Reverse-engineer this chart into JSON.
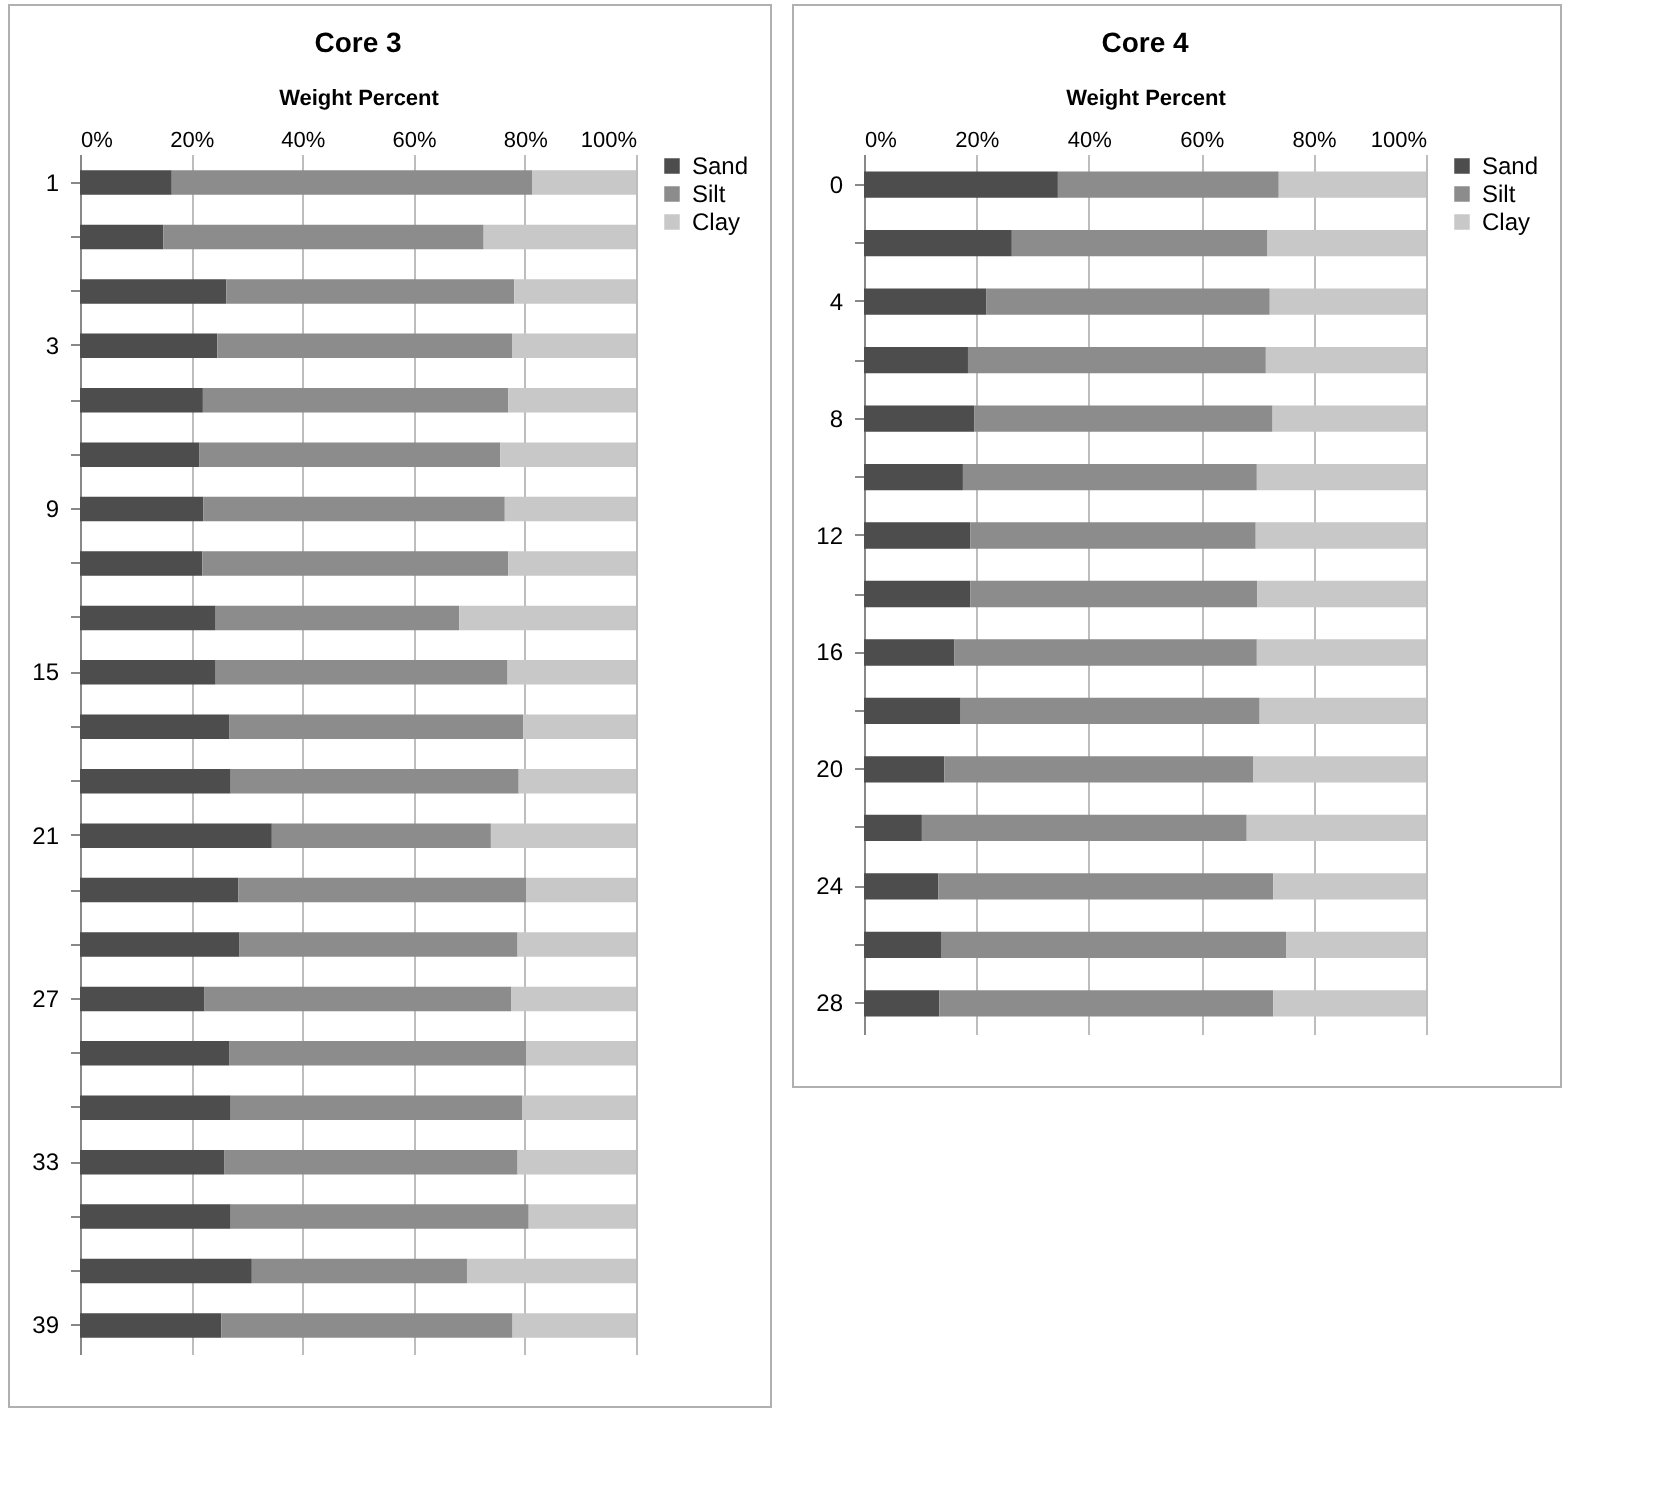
{
  "chart_data": [
    {
      "type": "bar",
      "title": "Core 3",
      "xlabel": "Weight Percent",
      "orientation": "horizontal",
      "stacked": true,
      "grid": "x",
      "legend": "right",
      "categories": [
        "1",
        null,
        null,
        "3",
        null,
        null,
        "9",
        null,
        null,
        "15",
        null,
        null,
        "21",
        null,
        null,
        "27",
        null,
        null,
        "33",
        null,
        null,
        "39"
      ],
      "xlim": [
        0,
        100
      ],
      "xticks": [
        {
          "value": 0,
          "label": "0%"
        },
        {
          "value": 20,
          "label": "20%"
        },
        {
          "value": 40,
          "label": "40%"
        },
        {
          "value": 60,
          "label": "60%"
        },
        {
          "value": 80,
          "label": "80%"
        },
        {
          "value": 100,
          "label": "100%"
        }
      ],
      "series": [
        {
          "name": "Sand",
          "color": "#4d4d4d",
          "values": [
            16.5,
            15.0,
            26.3,
            24.7,
            22.1,
            21.5,
            22.2,
            22.0,
            24.4,
            24.4,
            26.9,
            27.1,
            34.5,
            28.5,
            28.7,
            22.4,
            26.9,
            27.1,
            26.0,
            27.1,
            30.9,
            25.4
          ]
        },
        {
          "name": "Silt",
          "color": "#8c8c8c",
          "values": [
            64.8,
            57.6,
            51.8,
            53.0,
            54.9,
            54.1,
            54.2,
            55.0,
            43.8,
            52.5,
            52.8,
            51.8,
            39.4,
            51.8,
            50.0,
            55.2,
            53.4,
            52.4,
            52.7,
            53.6,
            38.7,
            52.4
          ]
        },
        {
          "name": "Clay",
          "color": "#c8c8c8",
          "values": [
            18.7,
            27.4,
            21.9,
            22.3,
            23.0,
            24.4,
            23.6,
            23.0,
            31.8,
            23.1,
            20.3,
            21.1,
            26.1,
            19.7,
            21.3,
            22.4,
            19.7,
            20.5,
            21.3,
            19.3,
            30.4,
            22.2
          ]
        }
      ]
    },
    {
      "type": "bar",
      "title": "Core 4",
      "xlabel": "Weight Percent",
      "orientation": "horizontal",
      "stacked": true,
      "grid": "x",
      "legend": "right",
      "categories": [
        "0",
        null,
        "4",
        null,
        "8",
        null,
        "12",
        null,
        "16",
        null,
        "20",
        null,
        "24",
        null,
        "28"
      ],
      "xlim": [
        0,
        100
      ],
      "xticks": [
        {
          "value": 0,
          "label": "0%"
        },
        {
          "value": 20,
          "label": "20%"
        },
        {
          "value": 40,
          "label": "40%"
        },
        {
          "value": 60,
          "label": "60%"
        },
        {
          "value": 80,
          "label": "80%"
        },
        {
          "value": 100,
          "label": "100%"
        }
      ],
      "series": [
        {
          "name": "Sand",
          "color": "#4d4d4d",
          "values": [
            34.5,
            26.3,
            21.8,
            18.5,
            19.6,
            17.6,
            18.9,
            18.9,
            16.1,
            17.2,
            14.3,
            10.3,
            13.2,
            13.7,
            13.4
          ]
        },
        {
          "name": "Silt",
          "color": "#8c8c8c",
          "values": [
            39.3,
            45.5,
            50.4,
            53.0,
            53.1,
            52.3,
            50.8,
            51.1,
            53.8,
            53.2,
            55.0,
            57.8,
            59.6,
            61.4,
            59.4
          ]
        },
        {
          "name": "Clay",
          "color": "#c8c8c8",
          "values": [
            26.2,
            28.2,
            27.8,
            28.5,
            27.3,
            30.1,
            30.3,
            30.0,
            30.1,
            29.6,
            30.7,
            31.9,
            27.2,
            24.9,
            27.2
          ]
        }
      ]
    }
  ]
}
